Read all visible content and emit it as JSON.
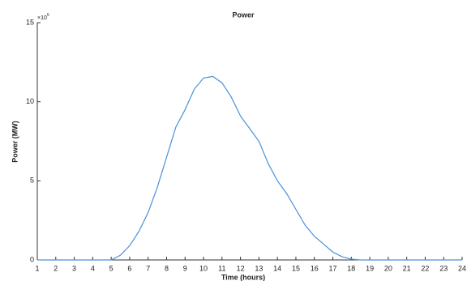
{
  "chart_data": {
    "type": "line",
    "title": "Power",
    "xlabel": "Time (hours)",
    "ylabel": "Power (MW)",
    "exponent_label": {
      "base": "×10",
      "power": "5"
    },
    "x": [
      1,
      2,
      3,
      4,
      5,
      5.5,
      6,
      6.5,
      7,
      7.5,
      8,
      8.5,
      9,
      9.5,
      10,
      10.5,
      11,
      11.5,
      12,
      12.5,
      13,
      13.5,
      14,
      14.5,
      15,
      15.5,
      16,
      16.5,
      17,
      17.5,
      18,
      18.5,
      19,
      20,
      21,
      22,
      23,
      24
    ],
    "series": [
      {
        "name": "Power",
        "color": "#4a90d9",
        "values": [
          0,
          0,
          0,
          0,
          0,
          0.3,
          0.9,
          1.8,
          3.0,
          4.6,
          6.5,
          8.4,
          9.5,
          10.8,
          11.5,
          11.6,
          11.2,
          10.3,
          9.1,
          8.3,
          7.5,
          6.1,
          5.0,
          4.2,
          3.2,
          2.2,
          1.5,
          1.0,
          0.5,
          0.2,
          0.05,
          0,
          0,
          0,
          0,
          0,
          0,
          0
        ]
      }
    ],
    "xlim": [
      1,
      24
    ],
    "xticks": [
      1,
      2,
      3,
      4,
      5,
      6,
      7,
      8,
      9,
      10,
      11,
      12,
      13,
      14,
      15,
      16,
      17,
      18,
      19,
      20,
      21,
      22,
      23,
      24
    ],
    "ylim": [
      0,
      15
    ],
    "yticks": [
      0,
      5,
      10,
      15
    ]
  }
}
